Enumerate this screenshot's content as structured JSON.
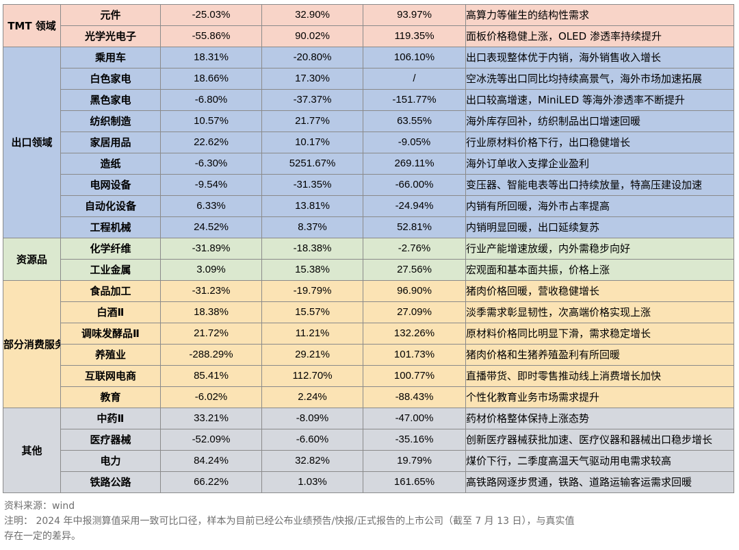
{
  "groups": {
    "tmt": "TMT 领域",
    "export": "出口领域",
    "resource": "资源品",
    "consumer": "部分消费服务",
    "other": "其他"
  },
  "rows": [
    {
      "industry": "元件",
      "v1": "-25.03%",
      "v2": "32.90%",
      "v3": "93.97%",
      "desc": "高算力等催生的结构性需求"
    },
    {
      "industry": "光学光电子",
      "v1": "-55.86%",
      "v2": "90.02%",
      "v3": "119.35%",
      "desc": "面板价格稳健上涨，OLED 渗透率持续提升"
    },
    {
      "industry": "乘用车",
      "v1": "18.31%",
      "v2": "-20.80%",
      "v3": "106.10%",
      "desc": "出口表现整体优于内销，海外销售收入增长"
    },
    {
      "industry": "白色家电",
      "v1": "18.66%",
      "v2": "17.30%",
      "v3": "/",
      "desc": "空冰洗等出口同比均持续高景气，海外市场加速拓展"
    },
    {
      "industry": "黑色家电",
      "v1": "-6.80%",
      "v2": "-37.37%",
      "v3": "-151.77%",
      "desc": "出口较高增速，MiniLED 等海外渗透率不断提升"
    },
    {
      "industry": "纺织制造",
      "v1": "10.57%",
      "v2": "21.77%",
      "v3": "63.55%",
      "desc": "海外库存回补，纺织制品出口增速回暖"
    },
    {
      "industry": "家居用品",
      "v1": "22.62%",
      "v2": "10.17%",
      "v3": "-9.05%",
      "desc": "行业原材料价格下行，出口稳健增长"
    },
    {
      "industry": "造纸",
      "v1": "-6.30%",
      "v2": "5251.67%",
      "v3": "269.11%",
      "desc": "海外订单收入支撑企业盈利"
    },
    {
      "industry": "电网设备",
      "v1": "-9.54%",
      "v2": "-31.35%",
      "v3": "-66.00%",
      "desc": "变压器、智能电表等出口持续放量，特高压建设加速"
    },
    {
      "industry": "自动化设备",
      "v1": "6.33%",
      "v2": "13.81%",
      "v3": "-24.94%",
      "desc": "内销有所回暖，海外市占率提高"
    },
    {
      "industry": "工程机械",
      "v1": "24.52%",
      "v2": "8.37%",
      "v3": "52.81%",
      "desc": "内销明显回暖，出口延续复苏"
    },
    {
      "industry": "化学纤维",
      "v1": "-31.89%",
      "v2": "-18.38%",
      "v3": "-2.76%",
      "desc": "行业产能增速放缓，内外需稳步向好"
    },
    {
      "industry": "工业金属",
      "v1": "3.09%",
      "v2": "15.38%",
      "v3": "27.56%",
      "desc": "宏观面和基本面共振，价格上涨"
    },
    {
      "industry": "食品加工",
      "v1": "-31.23%",
      "v2": "-19.79%",
      "v3": "96.90%",
      "desc": "猪肉价格回暖，营收稳健增长"
    },
    {
      "industry": "白酒Ⅱ",
      "v1": "18.38%",
      "v2": "15.57%",
      "v3": "27.09%",
      "desc": "淡季需求彰显韧性，次高端价格实现上涨"
    },
    {
      "industry": "调味发酵品Ⅱ",
      "v1": "21.72%",
      "v2": "11.21%",
      "v3": "132.26%",
      "desc": "原材料价格同比明显下滑，需求稳定增长"
    },
    {
      "industry": "养殖业",
      "v1": "-288.29%",
      "v2": "29.21%",
      "v3": "101.73%",
      "desc": "猪肉价格和生猪养殖盈利有所回暖"
    },
    {
      "industry": "互联网电商",
      "v1": "85.41%",
      "v2": "112.70%",
      "v3": "100.77%",
      "desc": "直播带货、即时零售推动线上消费增长加快"
    },
    {
      "industry": "教育",
      "v1": "-6.02%",
      "v2": "2.24%",
      "v3": "-88.43%",
      "desc": "个性化教育业务市场需求提升"
    },
    {
      "industry": "中药Ⅱ",
      "v1": "33.21%",
      "v2": "-8.09%",
      "v3": "-47.00%",
      "desc": "药材价格整体保持上涨态势"
    },
    {
      "industry": "医疗器械",
      "v1": "-52.09%",
      "v2": "-6.60%",
      "v3": "-35.16%",
      "desc": "创新医疗器械获批加速、医疗仪器和器械出口稳步增长"
    },
    {
      "industry": "电力",
      "v1": "84.24%",
      "v2": "32.82%",
      "v3": "19.79%",
      "desc": "煤价下行，二季度高温天气驱动用电需求较高"
    },
    {
      "industry": "铁路公路",
      "v1": "66.22%",
      "v2": "1.03%",
      "v3": "161.65%",
      "desc": "高铁路网逐步贯通，铁路、道路运输客运需求回暖"
    }
  ],
  "footer": {
    "source": "资料来源：wind",
    "note_line1": "注明： 2024 年中报测算值采用一致可比口径，样本为目前已经公布业绩预告/快报/正式报告的上市公司（截至 7 月 13 日），与真实值",
    "note_line2": "存在一定的差异。"
  }
}
